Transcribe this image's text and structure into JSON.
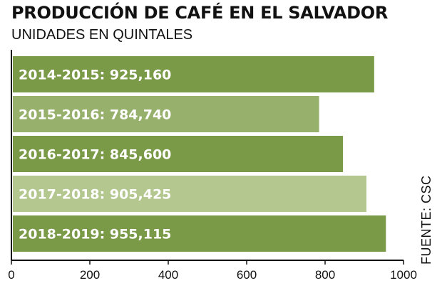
{
  "title": "PRODUCCIÓN DE CAFÉ EN EL SALVADOR",
  "subtitle": "UNIDADES EN QUINTALES",
  "source": "FUENTE: CSC",
  "colors": {
    "bar_dark": "#7a9a47",
    "bar_medium": "#97b06c",
    "bar_light": "#b3c78f",
    "axis": "#111111"
  },
  "chart_data": {
    "type": "bar",
    "orientation": "horizontal",
    "title": "PRODUCCIÓN DE CAFÉ EN EL SALVADOR",
    "subtitle": "UNIDADES EN QUINTALES",
    "categories": [
      "2014-2015",
      "2015-2016",
      "2016-2017",
      "2017-2018",
      "2018-2019"
    ],
    "values": [
      925160,
      784740,
      845600,
      905425,
      955115
    ],
    "data_labels": [
      "2014-2015: 925,160",
      "2015-2016: 784,740",
      "2016-2017: 845,600",
      "2017-2018: 905,425",
      "2018-2019: 955,115"
    ],
    "bar_shades": [
      "dark",
      "medium",
      "dark",
      "light",
      "dark"
    ],
    "xlim": [
      0,
      1000
    ],
    "x_scale_divisor": 1000,
    "xticks": [
      0,
      200,
      400,
      600,
      800,
      1000
    ],
    "xlabel": "",
    "ylabel": "",
    "grid": false,
    "legend": "none"
  }
}
